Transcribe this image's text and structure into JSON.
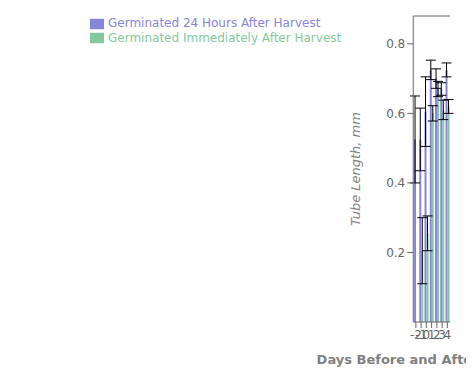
{
  "chart_data": {
    "type": "bar",
    "categories": [
      -2,
      -1,
      0,
      1,
      2,
      3,
      4
    ],
    "series": [
      {
        "name": "Germinated 24 Hours After Harvest",
        "color": "#8884d8",
        "values": [
          0.525,
          0.525,
          0.605,
          0.725,
          0.7,
          0.67,
          0.725
        ],
        "errors": [
          0.125,
          0.09,
          0.1,
          0.028,
          0.028,
          0.018,
          0.02
        ]
      },
      {
        "name": "Germinated Immediately After Harvest",
        "color": "#82ca9d",
        "values": [
          null,
          0.205,
          0.255,
          0.6,
          0.67,
          0.61,
          0.62
        ],
        "errors": [
          null,
          0.095,
          0.05,
          0.022,
          0.022,
          0.028,
          0.02
        ]
      }
    ],
    "xlabel": "Days Before and After Anthesis",
    "ylabel": "Tube Length, mm",
    "ylim": [
      0,
      0.88
    ],
    "yticks": [
      0.2,
      0.4,
      0.6,
      0.8
    ],
    "grid": false,
    "legend": "upper left"
  }
}
